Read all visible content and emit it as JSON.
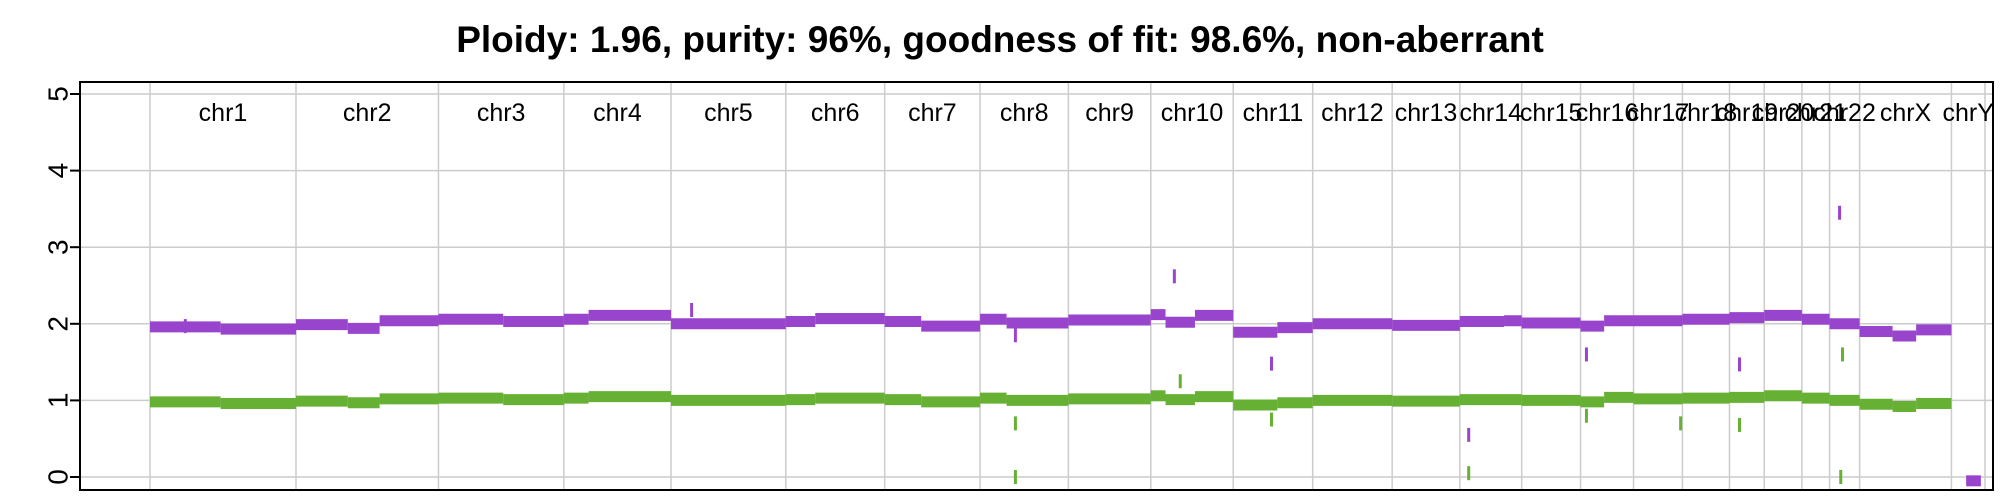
{
  "chart_data": {
    "type": "line",
    "title": "Ploidy: 1.96, purity: 96%, goodness of fit: 98.6%, non-aberrant",
    "xlabel": "",
    "ylabel": "",
    "ylim": [
      0,
      5
    ],
    "yticks": [
      0,
      1,
      2,
      3,
      4,
      5
    ],
    "grid": true,
    "legend": "none",
    "colors": {
      "total": "#9944cc",
      "minor": "#66b033",
      "grid": "#cccccc"
    },
    "chromosomes": [
      {
        "name": "chr1",
        "start": 0,
        "end": 248
      },
      {
        "name": "chr2",
        "start": 248,
        "end": 490
      },
      {
        "name": "chr3",
        "start": 490,
        "end": 703
      },
      {
        "name": "chr4",
        "start": 703,
        "end": 885
      },
      {
        "name": "chr5",
        "start": 885,
        "end": 1080
      },
      {
        "name": "chr6",
        "start": 1080,
        "end": 1248
      },
      {
        "name": "chr7",
        "start": 1248,
        "end": 1410
      },
      {
        "name": "chr8",
        "start": 1410,
        "end": 1560
      },
      {
        "name": "chr9",
        "start": 1560,
        "end": 1700
      },
      {
        "name": "chr10",
        "start": 1700,
        "end": 1840
      },
      {
        "name": "chr11",
        "start": 1840,
        "end": 1975
      },
      {
        "name": "chr12",
        "start": 1975,
        "end": 2110
      },
      {
        "name": "chr13",
        "start": 2110,
        "end": 2225
      },
      {
        "name": "chr14",
        "start": 2225,
        "end": 2330
      },
      {
        "name": "chr15",
        "start": 2330,
        "end": 2430
      },
      {
        "name": "chr16",
        "start": 2430,
        "end": 2520
      },
      {
        "name": "chr17",
        "start": 2520,
        "end": 2603
      },
      {
        "name": "chr18",
        "start": 2603,
        "end": 2683
      },
      {
        "name": "chr19",
        "start": 2683,
        "end": 2742
      },
      {
        "name": "chr20",
        "start": 2742,
        "end": 2806
      },
      {
        "name": "chr21",
        "start": 2806,
        "end": 2853
      },
      {
        "name": "chr22",
        "start": 2853,
        "end": 2904
      },
      {
        "name": "chrX",
        "start": 2904,
        "end": 3060
      },
      {
        "name": "chrY",
        "start": 3060,
        "end": 3117
      }
    ],
    "xlim": [
      0,
      3117
    ],
    "series": [
      {
        "key": "total",
        "segments": [
          {
            "start": 0,
            "end": 120,
            "value": 1.96
          },
          {
            "start": 120,
            "end": 248,
            "value": 1.93
          },
          {
            "start": 248,
            "end": 336,
            "value": 1.99
          },
          {
            "start": 336,
            "end": 390,
            "value": 1.94
          },
          {
            "start": 390,
            "end": 490,
            "value": 2.04
          },
          {
            "start": 490,
            "end": 600,
            "value": 2.06
          },
          {
            "start": 600,
            "end": 703,
            "value": 2.03
          },
          {
            "start": 703,
            "end": 745,
            "value": 2.06
          },
          {
            "start": 745,
            "end": 885,
            "value": 2.11
          },
          {
            "start": 885,
            "end": 1080,
            "value": 2.0
          },
          {
            "start": 1080,
            "end": 1130,
            "value": 2.03
          },
          {
            "start": 1130,
            "end": 1248,
            "value": 2.07
          },
          {
            "start": 1248,
            "end": 1310,
            "value": 2.03
          },
          {
            "start": 1310,
            "end": 1410,
            "value": 1.97
          },
          {
            "start": 1410,
            "end": 1455,
            "value": 2.06
          },
          {
            "start": 1455,
            "end": 1560,
            "value": 2.01
          },
          {
            "start": 1560,
            "end": 1700,
            "value": 2.05
          },
          {
            "start": 1700,
            "end": 1725,
            "value": 2.12
          },
          {
            "start": 1725,
            "end": 1775,
            "value": 2.02
          },
          {
            "start": 1775,
            "end": 1840,
            "value": 2.11
          },
          {
            "start": 1840,
            "end": 1915,
            "value": 1.89
          },
          {
            "start": 1915,
            "end": 1975,
            "value": 1.95
          },
          {
            "start": 1975,
            "end": 2110,
            "value": 2.0
          },
          {
            "start": 2110,
            "end": 2225,
            "value": 1.98
          },
          {
            "start": 2225,
            "end": 2300,
            "value": 2.03
          },
          {
            "start": 2300,
            "end": 2330,
            "value": 2.04
          },
          {
            "start": 2330,
            "end": 2430,
            "value": 2.01
          },
          {
            "start": 2430,
            "end": 2470,
            "value": 1.97
          },
          {
            "start": 2470,
            "end": 2520,
            "value": 2.04
          },
          {
            "start": 2520,
            "end": 2603,
            "value": 2.04
          },
          {
            "start": 2603,
            "end": 2683,
            "value": 2.06
          },
          {
            "start": 2683,
            "end": 2742,
            "value": 2.08
          },
          {
            "start": 2742,
            "end": 2806,
            "value": 2.11
          },
          {
            "start": 2806,
            "end": 2853,
            "value": 2.06
          },
          {
            "start": 2853,
            "end": 2904,
            "value": 2.0
          },
          {
            "start": 2904,
            "end": 2960,
            "value": 1.9
          },
          {
            "start": 2960,
            "end": 3000,
            "value": 1.84
          },
          {
            "start": 3000,
            "end": 3060,
            "value": 1.92
          },
          {
            "start": 3085,
            "end": 3110,
            "value": -0.05
          }
        ],
        "spikes": [
          {
            "x": 60,
            "value": 1.97
          },
          {
            "x": 920,
            "value": 2.18
          },
          {
            "x": 1470,
            "value": 1.85
          },
          {
            "x": 1740,
            "value": 2.62
          },
          {
            "x": 1905,
            "value": 1.48
          },
          {
            "x": 2240,
            "value": 0.55
          },
          {
            "x": 2440,
            "value": 1.6
          },
          {
            "x": 2700,
            "value": 1.47
          },
          {
            "x": 2870,
            "value": 3.45
          }
        ]
      },
      {
        "key": "minor",
        "segments": [
          {
            "start": 0,
            "end": 120,
            "value": 0.98
          },
          {
            "start": 120,
            "end": 248,
            "value": 0.96
          },
          {
            "start": 248,
            "end": 336,
            "value": 0.99
          },
          {
            "start": 336,
            "end": 390,
            "value": 0.97
          },
          {
            "start": 390,
            "end": 490,
            "value": 1.02
          },
          {
            "start": 490,
            "end": 600,
            "value": 1.03
          },
          {
            "start": 600,
            "end": 703,
            "value": 1.01
          },
          {
            "start": 703,
            "end": 745,
            "value": 1.03
          },
          {
            "start": 745,
            "end": 885,
            "value": 1.05
          },
          {
            "start": 885,
            "end": 1080,
            "value": 1.0
          },
          {
            "start": 1080,
            "end": 1130,
            "value": 1.01
          },
          {
            "start": 1130,
            "end": 1248,
            "value": 1.03
          },
          {
            "start": 1248,
            "end": 1310,
            "value": 1.01
          },
          {
            "start": 1310,
            "end": 1410,
            "value": 0.98
          },
          {
            "start": 1410,
            "end": 1455,
            "value": 1.03
          },
          {
            "start": 1455,
            "end": 1560,
            "value": 1.0
          },
          {
            "start": 1560,
            "end": 1700,
            "value": 1.02
          },
          {
            "start": 1700,
            "end": 1725,
            "value": 1.06
          },
          {
            "start": 1725,
            "end": 1775,
            "value": 1.01
          },
          {
            "start": 1775,
            "end": 1840,
            "value": 1.05
          },
          {
            "start": 1840,
            "end": 1915,
            "value": 0.94
          },
          {
            "start": 1915,
            "end": 1975,
            "value": 0.97
          },
          {
            "start": 1975,
            "end": 2110,
            "value": 1.0
          },
          {
            "start": 2110,
            "end": 2225,
            "value": 0.99
          },
          {
            "start": 2225,
            "end": 2330,
            "value": 1.01
          },
          {
            "start": 2330,
            "end": 2430,
            "value": 1.0
          },
          {
            "start": 2430,
            "end": 2470,
            "value": 0.98
          },
          {
            "start": 2470,
            "end": 2520,
            "value": 1.04
          },
          {
            "start": 2520,
            "end": 2603,
            "value": 1.02
          },
          {
            "start": 2603,
            "end": 2683,
            "value": 1.03
          },
          {
            "start": 2683,
            "end": 2742,
            "value": 1.04
          },
          {
            "start": 2742,
            "end": 2806,
            "value": 1.06
          },
          {
            "start": 2806,
            "end": 2853,
            "value": 1.03
          },
          {
            "start": 2853,
            "end": 2904,
            "value": 1.0
          },
          {
            "start": 2904,
            "end": 2960,
            "value": 0.95
          },
          {
            "start": 2960,
            "end": 3000,
            "value": 0.92
          },
          {
            "start": 3000,
            "end": 3060,
            "value": 0.96
          }
        ],
        "spikes": [
          {
            "x": 1470,
            "value": 0.7
          },
          {
            "x": 1470,
            "value": 0.0
          },
          {
            "x": 1750,
            "value": 1.25
          },
          {
            "x": 1905,
            "value": 0.75
          },
          {
            "x": 2240,
            "value": 0.05
          },
          {
            "x": 2440,
            "value": 0.8
          },
          {
            "x": 2600,
            "value": 0.7
          },
          {
            "x": 2700,
            "value": 0.68
          },
          {
            "x": 2872,
            "value": 0.0
          },
          {
            "x": 2875,
            "value": 1.6
          }
        ]
      }
    ]
  }
}
